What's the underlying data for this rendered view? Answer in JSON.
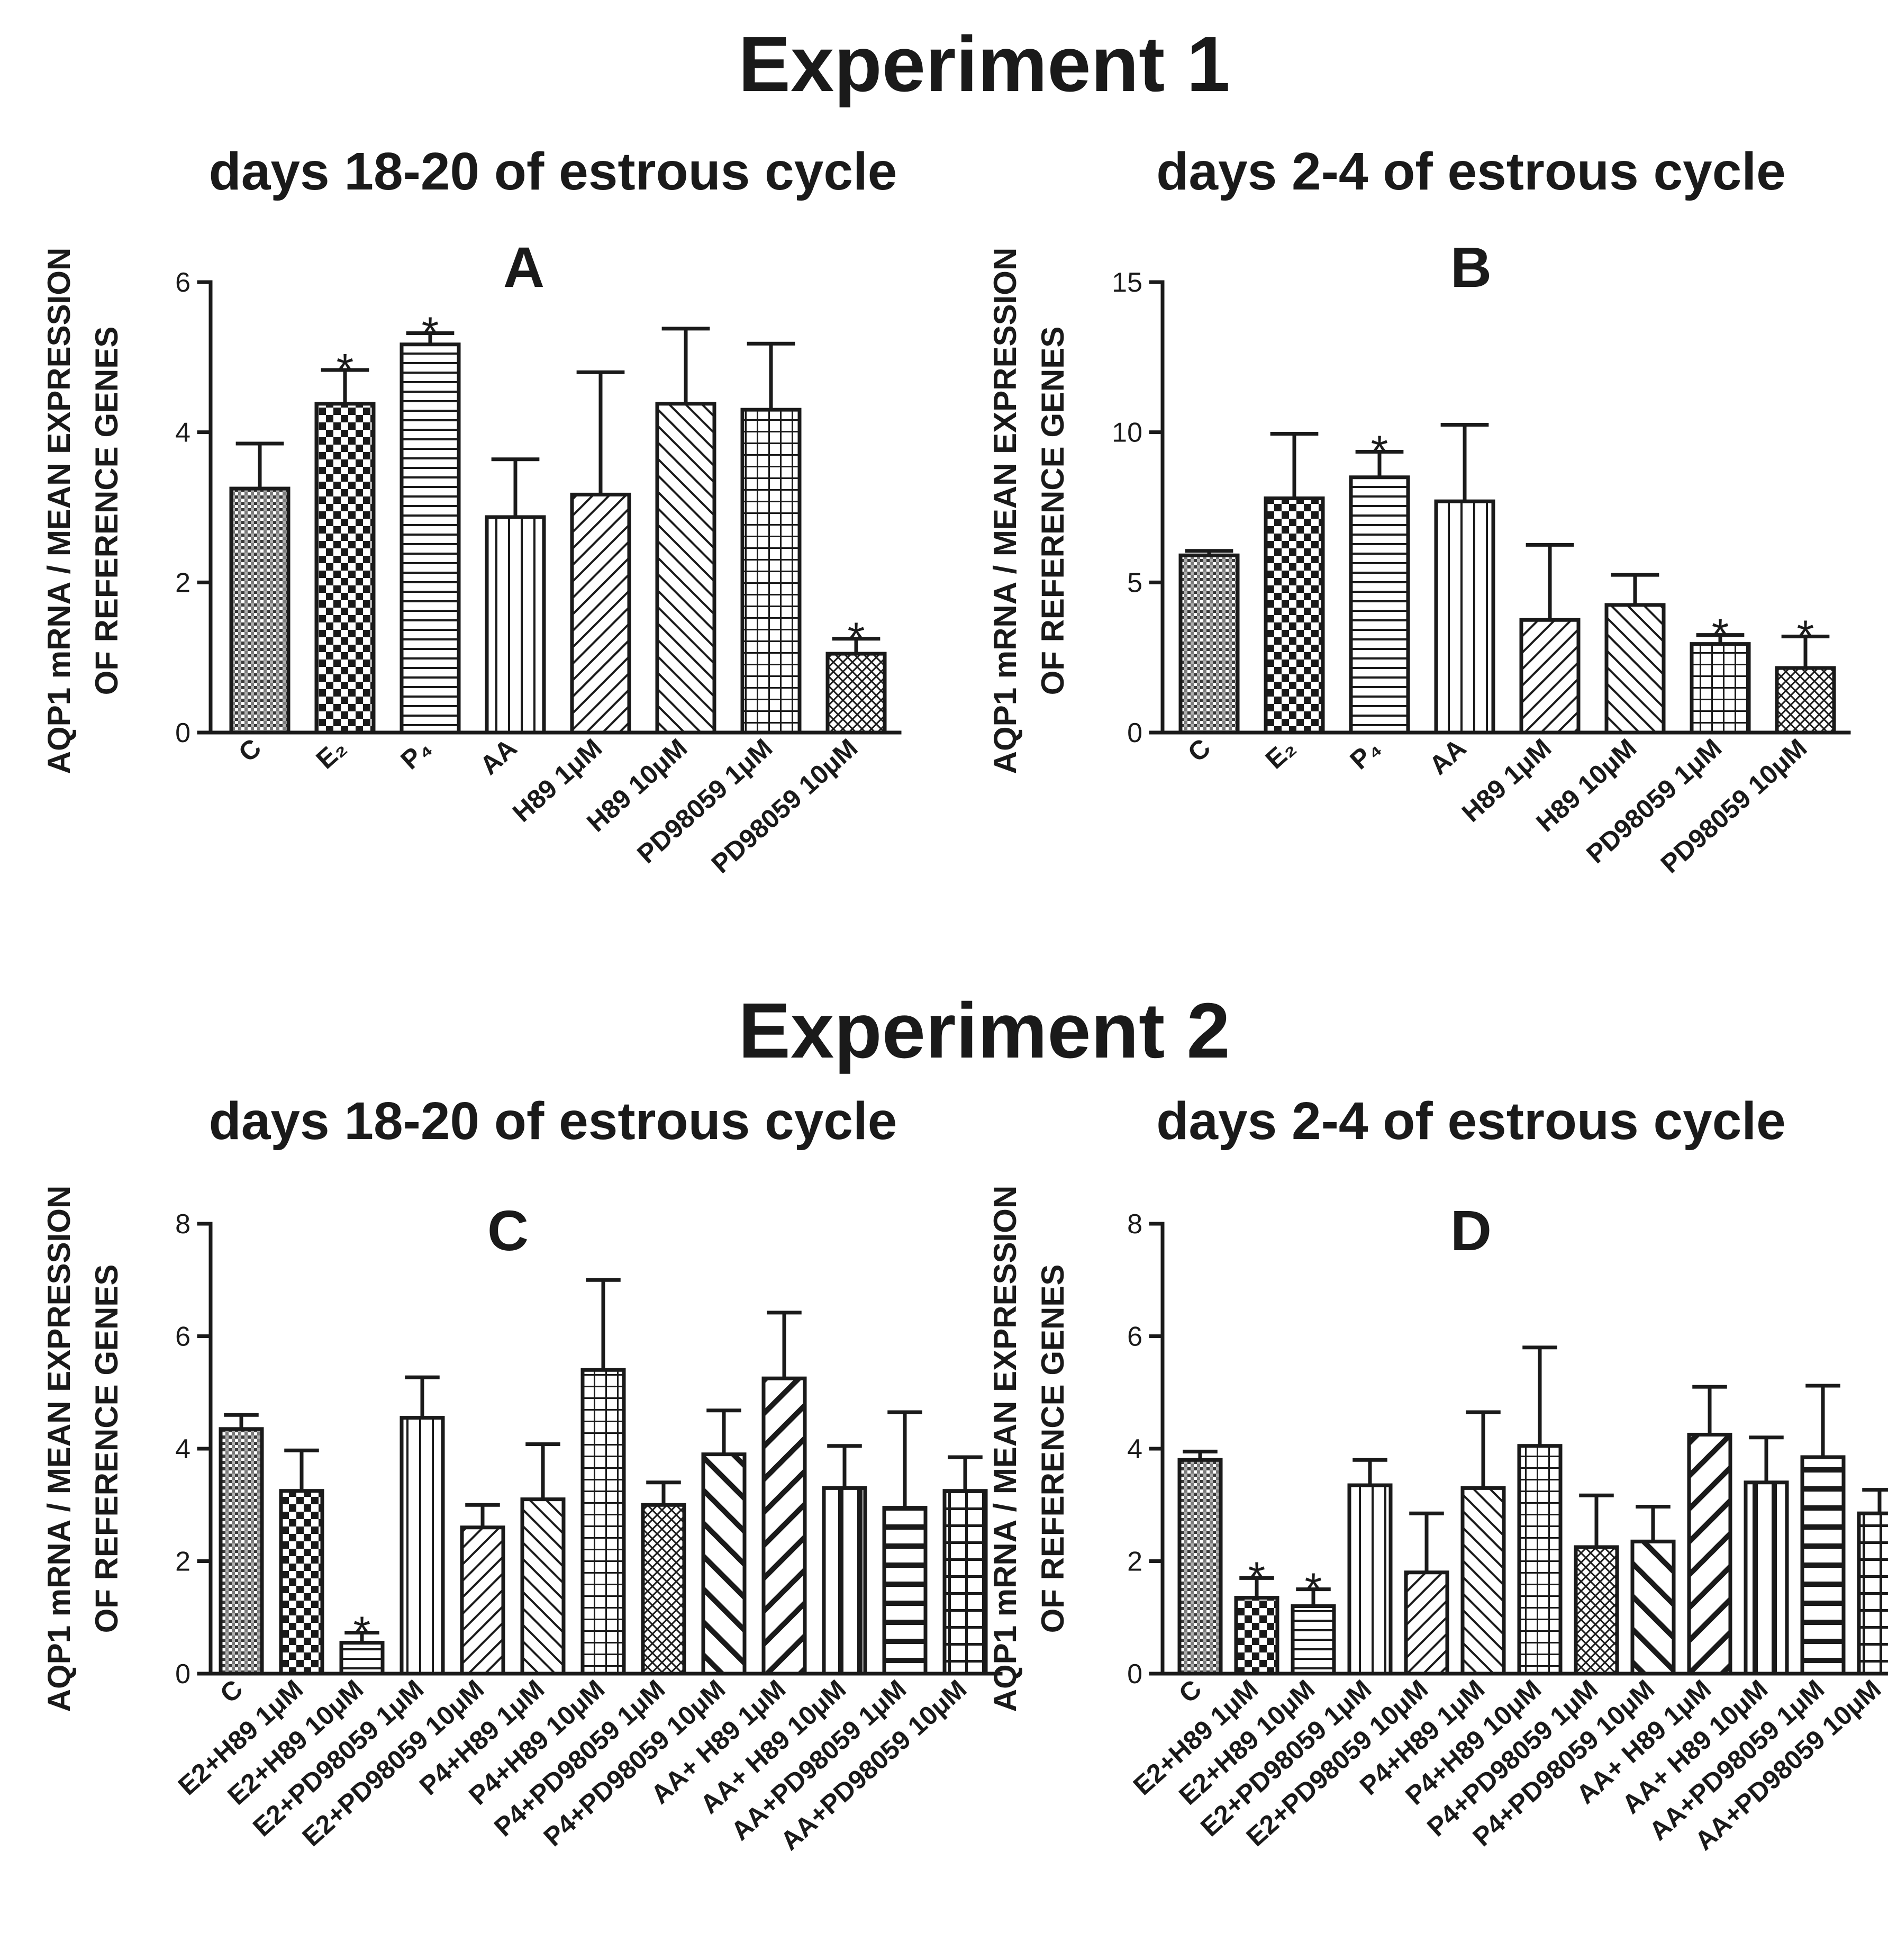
{
  "experiment_titles": [
    "Experiment 1",
    "Experiment 2"
  ],
  "colors": {
    "ink": "#1a1a1a",
    "background": "#ffffff"
  },
  "chart_data": [
    {
      "panel": "A",
      "type": "bar",
      "section": "Experiment 1",
      "subtitle": "days 18-20 of estrous cycle",
      "title": "A",
      "ylabel_line1": "AQP1 mRNA / MEAN EXPRESSION",
      "ylabel_line2": "OF REFERENCE GENES",
      "xlabel": "",
      "ylim": [
        0,
        6
      ],
      "yticks": [
        0,
        2,
        4,
        6
      ],
      "categories": [
        "C",
        "E₂",
        "P₄",
        "AA",
        "H89 1μM",
        "H89 10μM",
        "PD98059 1μM",
        "PD98059 10μM"
      ],
      "values": [
        3.25,
        4.38,
        5.17,
        2.87,
        3.17,
        4.38,
        4.3,
        1.05
      ],
      "errors": [
        0.6,
        0.45,
        0.15,
        0.77,
        1.63,
        1.0,
        0.88,
        0.2
      ],
      "significant": [
        false,
        true,
        true,
        false,
        false,
        false,
        false,
        true
      ],
      "patterns": [
        "fine",
        "check",
        "hlines",
        "vlines",
        "diag-right",
        "diag-left",
        "grid",
        "crosshatch"
      ],
      "significance_mark": "*"
    },
    {
      "panel": "B",
      "type": "bar",
      "section": "Experiment 1",
      "subtitle": "days 2-4 of estrous cycle",
      "title": "B",
      "ylabel_line1": "AQP1 mRNA / MEAN EXPRESSION",
      "ylabel_line2": "OF REFERENCE GENES",
      "xlabel": "",
      "ylim": [
        0,
        15
      ],
      "yticks": [
        0,
        5,
        10,
        15
      ],
      "categories": [
        "C",
        "E₂",
        "P₄",
        "AA",
        "H89 1μM",
        "H89 10μM",
        "PD98059 1μM",
        "PD98059 10μM"
      ],
      "values": [
        5.9,
        7.8,
        8.5,
        7.7,
        3.75,
        4.25,
        2.95,
        2.15
      ],
      "errors": [
        0.15,
        2.15,
        0.85,
        2.55,
        2.5,
        1.0,
        0.3,
        1.05
      ],
      "significant": [
        false,
        false,
        true,
        false,
        false,
        false,
        true,
        true
      ],
      "patterns": [
        "fine",
        "check",
        "hlines",
        "vlines",
        "diag-right",
        "diag-left",
        "grid",
        "crosshatch"
      ],
      "significance_mark": "*"
    },
    {
      "panel": "C",
      "type": "bar",
      "section": "Experiment 2",
      "subtitle": "days 18-20 of estrous cycle",
      "title": "C",
      "ylabel_line1": "AQP1 mRNA / MEAN EXPRESSION",
      "ylabel_line2": "OF REFERENCE GENES",
      "xlabel": "",
      "ylim": [
        0,
        8
      ],
      "yticks": [
        0,
        2,
        4,
        6,
        8
      ],
      "categories": [
        "C",
        "E2+H89 1μM",
        "E2+H89 10μM",
        "E2+PD98059 1μM",
        "E2+PD98059 10μM",
        "P4+H89 1μM",
        "P4+H89 10μM",
        "P4+PD98059 1μM",
        "P4+PD98059 10μM",
        "AA+ H89 1μM",
        "AA+ H89 10μM",
        "AA+PD98059 1μM",
        "AA+PD98059 10μM"
      ],
      "values": [
        4.35,
        3.25,
        0.55,
        4.55,
        2.6,
        3.1,
        5.4,
        3.0,
        3.9,
        5.25,
        3.3,
        2.95,
        3.25
      ],
      "errors": [
        0.25,
        0.72,
        0.18,
        0.72,
        0.4,
        0.98,
        1.6,
        0.4,
        0.78,
        1.17,
        0.75,
        1.7,
        0.6
      ],
      "significant": [
        false,
        false,
        true,
        false,
        false,
        false,
        false,
        false,
        false,
        false,
        false,
        false,
        false
      ],
      "patterns": [
        "fine",
        "check",
        "hlines",
        "vlines",
        "diag-right",
        "diag-left",
        "grid",
        "crosshatch",
        "diag-left-thick",
        "diag-right-thick",
        "vlines-thick",
        "hlines-thick",
        "grid-wide"
      ],
      "significance_mark": "*"
    },
    {
      "panel": "D",
      "type": "bar",
      "section": "Experiment 2",
      "subtitle": "days 2-4 of estrous cycle",
      "title": "D",
      "ylabel_line1": "AQP1 mRNA / MEAN EXPRESSION",
      "ylabel_line2": "OF REFERENCE GENES",
      "xlabel": "",
      "ylim": [
        0,
        8
      ],
      "yticks": [
        0,
        2,
        4,
        6,
        8
      ],
      "categories": [
        "C",
        "E2+H89 1μM",
        "E2+H89 10μM",
        "E2+PD98059 1μM",
        "E2+PD98059 10μM",
        "P4+H89 1μM",
        "P4+H89 10μM",
        "P4+PD98059 1μM",
        "P4+PD98059 10μM",
        "AA+ H89 1μM",
        "AA+ H89 10μM",
        "AA+PD98059 1μM",
        "AA+PD98059 10μM"
      ],
      "values": [
        3.8,
        1.35,
        1.2,
        3.35,
        1.8,
        3.3,
        4.05,
        2.25,
        2.35,
        4.25,
        3.4,
        3.85,
        2.85
      ],
      "errors": [
        0.15,
        0.35,
        0.3,
        0.45,
        1.05,
        1.35,
        1.75,
        0.92,
        0.62,
        0.85,
        0.8,
        1.27,
        0.42
      ],
      "significant": [
        false,
        true,
        true,
        false,
        false,
        false,
        false,
        false,
        false,
        false,
        false,
        false,
        false
      ],
      "patterns": [
        "fine",
        "check",
        "hlines",
        "vlines",
        "diag-right",
        "diag-left",
        "grid",
        "crosshatch",
        "diag-left-thick",
        "diag-right-thick",
        "vlines-thick",
        "hlines-thick",
        "grid-wide"
      ],
      "significance_mark": "*"
    }
  ]
}
